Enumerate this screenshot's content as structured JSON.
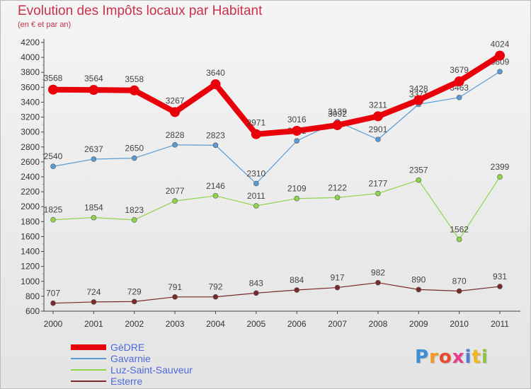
{
  "title": "Evolution des Impôts locaux par Habitant",
  "subtitle": "(en € et par an)",
  "logo": {
    "letters": [
      "P",
      "r",
      "o",
      "x",
      "i",
      "t",
      "i"
    ],
    "colors": [
      "#3b8fd6",
      "#f29a1f",
      "#e94b2e",
      "#e83d8f",
      "#4d7fd4",
      "#f2b41f",
      "#8cc63f"
    ]
  },
  "chart_data": {
    "type": "line",
    "x": [
      "2000",
      "2001",
      "2002",
      "2003",
      "2004",
      "2005",
      "2006",
      "2007",
      "2008",
      "2009",
      "2010",
      "2011"
    ],
    "ylim": [
      600,
      4200
    ],
    "yticks": [
      600,
      800,
      1000,
      1200,
      1400,
      1600,
      1800,
      2000,
      2200,
      2400,
      2600,
      2800,
      3000,
      3200,
      3400,
      3600,
      3800,
      4000,
      4200
    ],
    "grid": false,
    "legend_position": "bottom-left",
    "series": [
      {
        "name": "GèDRE",
        "color": "#e8000a",
        "values": [
          3568,
          3564,
          3558,
          3267,
          3640,
          2971,
          3016,
          3092,
          3211,
          3428,
          3679,
          4024
        ]
      },
      {
        "name": "Gavarnie",
        "color": "#5b9bd5",
        "values": [
          2540,
          2637,
          2650,
          2828,
          2823,
          2310,
          2881,
          3139,
          2901,
          3371,
          3463,
          3809
        ]
      },
      {
        "name": "Luz-Saint-Sauveur",
        "color": "#8fd44a",
        "values": [
          1825,
          1854,
          1823,
          2077,
          2146,
          2011,
          2109,
          2122,
          2177,
          2357,
          1562,
          2399
        ]
      },
      {
        "name": "Esterre",
        "color": "#7a2a2a",
        "values": [
          707,
          724,
          729,
          791,
          792,
          843,
          884,
          917,
          982,
          890,
          870,
          931
        ]
      }
    ]
  }
}
